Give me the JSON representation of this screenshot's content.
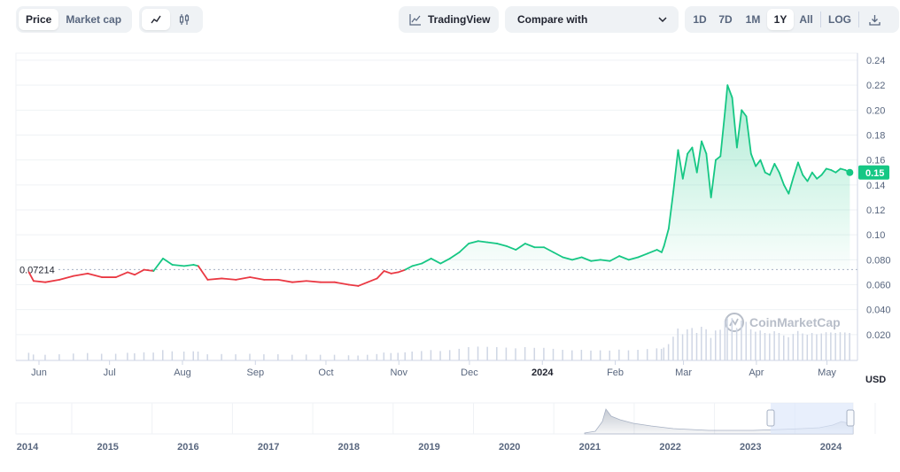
{
  "toolbar": {
    "metric_tabs": [
      {
        "label": "Price",
        "active": true
      },
      {
        "label": "Market cap",
        "active": false
      }
    ],
    "chart_type_icons": [
      "line-chart-icon",
      "candlestick-icon"
    ],
    "tradingview_label": "TradingView",
    "compare_label": "Compare with",
    "ranges": [
      {
        "label": "1D",
        "active": false
      },
      {
        "label": "7D",
        "active": false
      },
      {
        "label": "1M",
        "active": false
      },
      {
        "label": "1Y",
        "active": true
      },
      {
        "label": "All",
        "active": false
      }
    ],
    "log_label": "LOG",
    "download_icon": "download-icon"
  },
  "currency_label": "USD",
  "watermark": "CoinMarketCap",
  "colors": {
    "up": "#16c784",
    "down": "#ea3943",
    "grid": "#eff2f5",
    "text": "#58667e"
  },
  "chart_data": {
    "type": "line",
    "x_tick_labels": [
      "Jun",
      "Jul",
      "Aug",
      "Sep",
      "Oct",
      "Nov",
      "Dec",
      "2024",
      "Feb",
      "Mar",
      "Apr",
      "May"
    ],
    "y_ticks": [
      "0.24",
      "0.22",
      "0.20",
      "0.18",
      "0.16",
      "0.14",
      "0.12",
      "0.10",
      "0.080",
      "0.060",
      "0.040",
      "0.020"
    ],
    "ylim": [
      0,
      0.24
    ],
    "reference_price": 0.07214,
    "reference_label": "0.07214",
    "current_price": 0.15,
    "current_label": "0.15",
    "xlim": [
      "2023-06-01",
      "2024-05-20"
    ],
    "series": [
      {
        "x": [
          "2023-06-05",
          "2023-06-07",
          "2023-06-12",
          "2023-06-18",
          "2023-06-24",
          "2023-06-30",
          "2023-07-06",
          "2023-07-12",
          "2023-07-17",
          "2023-07-20",
          "2023-07-24",
          "2023-07-28",
          "2023-08-01",
          "2023-08-05",
          "2023-08-10",
          "2023-08-14",
          "2023-08-16",
          "2023-08-20",
          "2023-08-26",
          "2023-09-01",
          "2023-09-07",
          "2023-09-13",
          "2023-09-19",
          "2023-09-25",
          "2023-10-01",
          "2023-10-07",
          "2023-10-13",
          "2023-10-19",
          "2023-10-23",
          "2023-10-27",
          "2023-10-31",
          "2023-11-03",
          "2023-11-06",
          "2023-11-09",
          "2023-11-12",
          "2023-11-15",
          "2023-11-19",
          "2023-11-23",
          "2023-11-27",
          "2023-12-01",
          "2023-12-05",
          "2023-12-09",
          "2023-12-13",
          "2023-12-17",
          "2023-12-21",
          "2023-12-25",
          "2023-12-29",
          "2024-01-02",
          "2024-01-06",
          "2024-01-10",
          "2024-01-14",
          "2024-01-18",
          "2024-01-22",
          "2024-01-26",
          "2024-01-30",
          "2024-02-03",
          "2024-02-07",
          "2024-02-11",
          "2024-02-15",
          "2024-02-19",
          "2024-02-23",
          "2024-02-27",
          "2024-02-29",
          "2024-03-01",
          "2024-03-03",
          "2024-03-05",
          "2024-03-07",
          "2024-03-09",
          "2024-03-11",
          "2024-03-13",
          "2024-03-15",
          "2024-03-17",
          "2024-03-19",
          "2024-03-21",
          "2024-03-23",
          "2024-03-25",
          "2024-03-27",
          "2024-03-28",
          "2024-03-30",
          "2024-04-01",
          "2024-04-03",
          "2024-04-05",
          "2024-04-07",
          "2024-04-09",
          "2024-04-11",
          "2024-04-13",
          "2024-04-15",
          "2024-04-17",
          "2024-04-19",
          "2024-04-21",
          "2024-04-23",
          "2024-04-25",
          "2024-04-27",
          "2024-04-29",
          "2024-05-01",
          "2024-05-03",
          "2024-05-05",
          "2024-05-07",
          "2024-05-09",
          "2024-05-11",
          "2024-05-13",
          "2024-05-15",
          "2024-05-17",
          "2024-05-19"
        ],
        "y": [
          0.07,
          0.063,
          0.062,
          0.064,
          0.067,
          0.069,
          0.066,
          0.066,
          0.07,
          0.068,
          0.072,
          0.071,
          0.081,
          0.076,
          0.075,
          0.076,
          0.075,
          0.064,
          0.065,
          0.064,
          0.066,
          0.064,
          0.064,
          0.062,
          0.063,
          0.062,
          0.062,
          0.06,
          0.059,
          0.062,
          0.065,
          0.071,
          0.069,
          0.07,
          0.072,
          0.075,
          0.077,
          0.081,
          0.077,
          0.081,
          0.086,
          0.093,
          0.095,
          0.094,
          0.093,
          0.091,
          0.088,
          0.093,
          0.09,
          0.09,
          0.086,
          0.082,
          0.08,
          0.082,
          0.079,
          0.08,
          0.079,
          0.083,
          0.08,
          0.082,
          0.085,
          0.088,
          0.086,
          0.091,
          0.105,
          0.135,
          0.168,
          0.145,
          0.165,
          0.17,
          0.15,
          0.175,
          0.165,
          0.13,
          0.16,
          0.163,
          0.2,
          0.22,
          0.21,
          0.17,
          0.2,
          0.195,
          0.165,
          0.155,
          0.16,
          0.15,
          0.148,
          0.157,
          0.15,
          0.14,
          0.133,
          0.146,
          0.158,
          0.148,
          0.143,
          0.15,
          0.145,
          0.148,
          0.153,
          0.152,
          0.15,
          0.153,
          0.152,
          0.15
        ]
      }
    ],
    "volume_note": "",
    "navigator_years": [
      "2014",
      "2015",
      "2016",
      "2017",
      "2018",
      "2019",
      "2020",
      "2021",
      "2022",
      "2023",
      "2024"
    ]
  }
}
